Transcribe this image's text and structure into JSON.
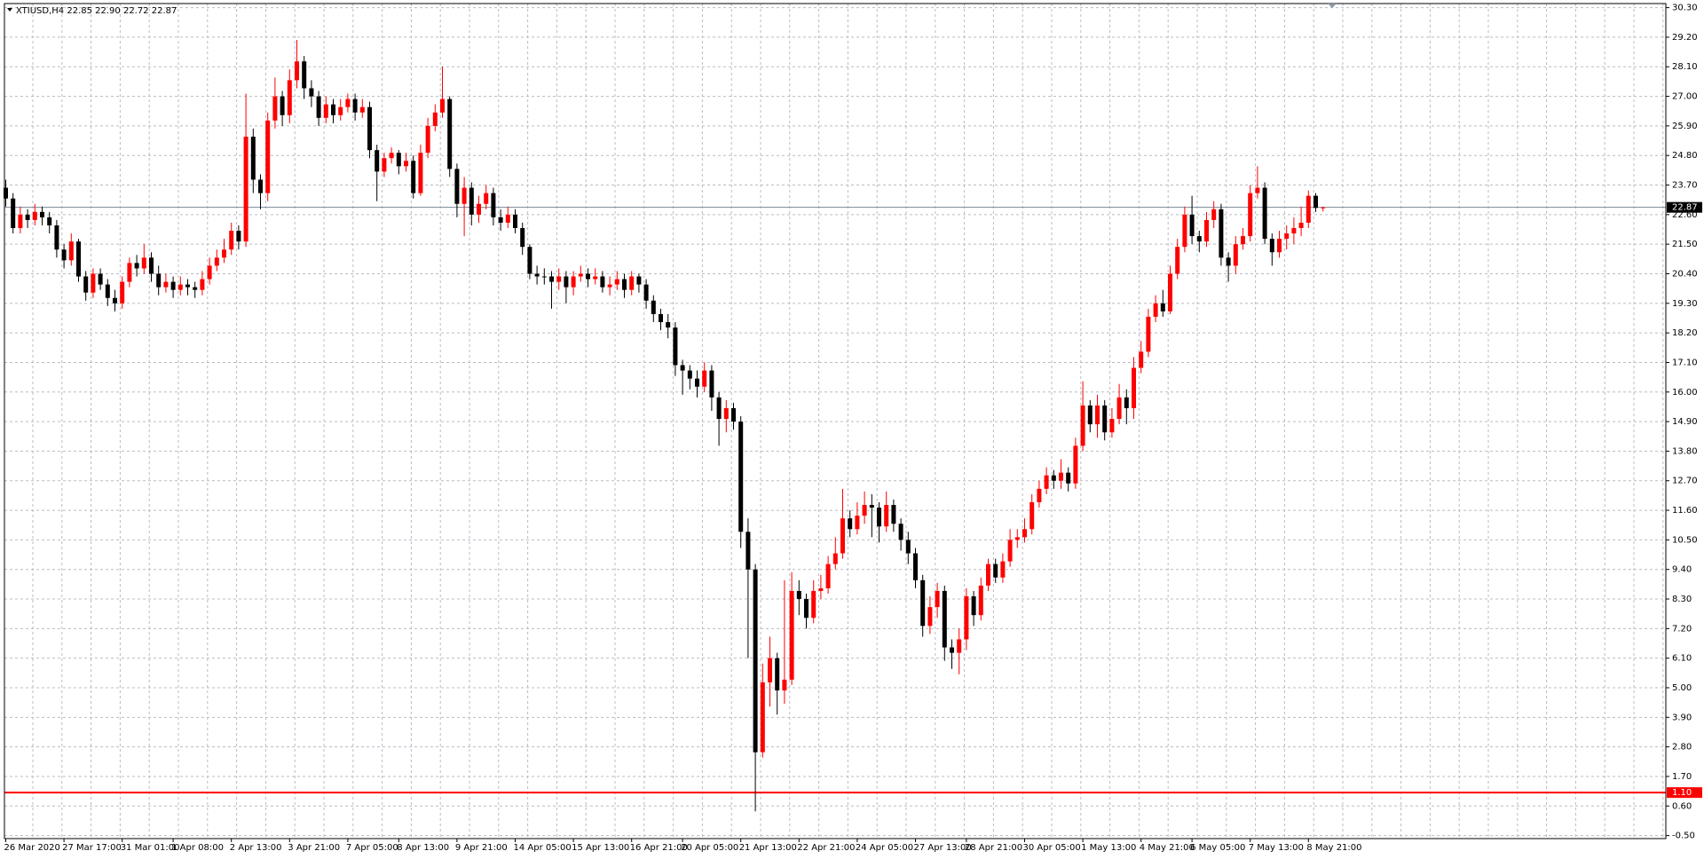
{
  "chart_data": {
    "type": "candlestick",
    "header": "XTIUSD,H4  22.85 22.90 22.72 22.87",
    "up_color": "#ff0000",
    "down_color": "#000000",
    "grid": true,
    "grid_color": "#b8bcc4",
    "ylim": [
      -0.5,
      30.3
    ],
    "yticks": [
      {
        "value": 30.3,
        "label": "30.30"
      },
      {
        "value": 29.2,
        "label": "29.20"
      },
      {
        "value": 28.1,
        "label": "28.10"
      },
      {
        "value": 27.0,
        "label": "27.00"
      },
      {
        "value": 25.9,
        "label": "25.90"
      },
      {
        "value": 24.8,
        "label": "24.80"
      },
      {
        "value": 23.7,
        "label": "23.70"
      },
      {
        "value": 22.6,
        "label": "22.60"
      },
      {
        "value": 21.5,
        "label": "21.50"
      },
      {
        "value": 20.4,
        "label": "20.40"
      },
      {
        "value": 19.3,
        "label": "19.30"
      },
      {
        "value": 18.2,
        "label": "18.20"
      },
      {
        "value": 17.1,
        "label": "17.10"
      },
      {
        "value": 16.0,
        "label": "16.00"
      },
      {
        "value": 14.9,
        "label": "14.90"
      },
      {
        "value": 13.8,
        "label": "13.80"
      },
      {
        "value": 12.7,
        "label": "12.70"
      },
      {
        "value": 11.6,
        "label": "11.60"
      },
      {
        "value": 10.5,
        "label": "10.50"
      },
      {
        "value": 9.4,
        "label": "9.40"
      },
      {
        "value": 8.3,
        "label": "8.30"
      },
      {
        "value": 7.2,
        "label": "7.20"
      },
      {
        "value": 6.1,
        "label": "6.10"
      },
      {
        "value": 5.0,
        "label": "5.00"
      },
      {
        "value": 3.9,
        "label": "3.90"
      },
      {
        "value": 2.8,
        "label": "2.80"
      },
      {
        "value": 1.7,
        "label": "1.70"
      },
      {
        "value": 0.6,
        "label": "0.60"
      },
      {
        "value": -0.5,
        "label": "-0.50"
      }
    ],
    "bid_line": 22.87,
    "bid_color": "#7a8a9a",
    "level_line": {
      "value": 1.1,
      "label": "1.10",
      "color": "#ff0000"
    },
    "categories": [
      "26 Mar 2020",
      null,
      null,
      null,
      null,
      null,
      null,
      null,
      "27 Mar 17:00",
      null,
      null,
      null,
      null,
      null,
      null,
      null,
      "31 Mar 01:00",
      null,
      null,
      null,
      null,
      null,
      null,
      "1 Apr 08:00",
      null,
      null,
      null,
      null,
      null,
      null,
      null,
      "2 Apr 13:00",
      null,
      null,
      null,
      null,
      null,
      null,
      null,
      "3 Apr 21:00",
      null,
      null,
      null,
      null,
      null,
      null,
      null,
      "7 Apr 05:00",
      null,
      null,
      null,
      null,
      null,
      null,
      "8 Apr 13:00",
      null,
      null,
      null,
      null,
      null,
      null,
      null,
      "9 Apr 21:00",
      null,
      null,
      null,
      null,
      null,
      null,
      null,
      "14 Apr 05:00",
      null,
      null,
      null,
      null,
      null,
      null,
      null,
      "15 Apr 13:00",
      null,
      null,
      null,
      null,
      null,
      null,
      null,
      "16 Apr 21:00",
      null,
      null,
      null,
      null,
      null,
      null,
      "20 Apr 05:00",
      null,
      null,
      null,
      null,
      null,
      null,
      null,
      "21 Apr 13:00",
      null,
      null,
      null,
      null,
      null,
      null,
      null,
      "22 Apr 21:00",
      null,
      null,
      null,
      null,
      null,
      null,
      null,
      "24 Apr 05:00",
      null,
      null,
      null,
      null,
      null,
      null,
      null,
      "27 Apr 13:00",
      null,
      null,
      null,
      null,
      null,
      null,
      "28 Apr 21:00",
      null,
      null,
      null,
      null,
      null,
      null,
      null,
      "30 Apr 05:00",
      null,
      null,
      null,
      null,
      null,
      null,
      null,
      "1 May 13:00",
      null,
      null,
      null,
      null,
      null,
      null,
      null,
      "4 May 21:00",
      null,
      null,
      null,
      null,
      null,
      null,
      "6 May 05:00",
      null,
      null,
      null,
      null,
      null,
      null,
      null,
      "7 May 13:00",
      null,
      null,
      null,
      null,
      null,
      null,
      null,
      "8 May 21:00",
      null,
      null
    ],
    "open": [
      23.6,
      23.2,
      22.1,
      22.6,
      22.4,
      22.7,
      22.5,
      22.2,
      21.3,
      20.9,
      21.6,
      20.3,
      19.7,
      20.4,
      20.0,
      19.5,
      19.3,
      20.1,
      20.8,
      20.6,
      21.0,
      20.4,
      19.9,
      20.1,
      19.8,
      20.0,
      19.9,
      19.8,
      20.2,
      20.7,
      21.0,
      21.3,
      22.0,
      21.6,
      25.5,
      23.9,
      23.4,
      26.1,
      27.0,
      26.3,
      27.6,
      28.3,
      27.3,
      27.0,
      26.2,
      26.7,
      26.3,
      26.6,
      26.9,
      26.4,
      26.6,
      25.0,
      24.2,
      24.7,
      24.9,
      24.4,
      24.6,
      23.4,
      24.9,
      25.9,
      26.4,
      26.9,
      24.3,
      23.0,
      23.6,
      22.6,
      23.0,
      23.4,
      22.5,
      22.3,
      22.6,
      22.1,
      21.4,
      20.4,
      20.3,
      20.3,
      20.1,
      20.3,
      19.9,
      20.3,
      20.4,
      20.2,
      20.3,
      19.9,
      20.0,
      20.2,
      19.8,
      20.3,
      20.0,
      19.4,
      18.9,
      18.6,
      18.4,
      17.0,
      16.8,
      16.5,
      16.2,
      16.8,
      15.8,
      15.0,
      15.4,
      14.9,
      10.8,
      9.4,
      2.6,
      5.2,
      6.1,
      4.9,
      5.3,
      8.6,
      8.3,
      7.6,
      8.6,
      8.7,
      9.6,
      10.0,
      11.3,
      10.9,
      11.4,
      11.8,
      11.7,
      11.0,
      11.8,
      11.1,
      10.5,
      10.0,
      9.0,
      7.3,
      8.0,
      8.6,
      6.5,
      6.3,
      6.8,
      8.4,
      7.7,
      8.8,
      9.6,
      9.1,
      9.7,
      10.5,
      10.6,
      10.9,
      11.9,
      12.4,
      12.9,
      12.7,
      13.0,
      12.6,
      14.0,
      15.5,
      14.8,
      15.5,
      14.5,
      15.0,
      15.8,
      15.4,
      16.9,
      17.5,
      18.8,
      19.3,
      19.0,
      20.4,
      21.4,
      22.6,
      21.8,
      21.6,
      22.4,
      22.8,
      21.0,
      20.7,
      21.5,
      21.8,
      23.4,
      23.6,
      21.7,
      21.2,
      21.7,
      21.9,
      22.1,
      22.3,
      23.3,
      22.85
    ],
    "high": [
      23.9,
      23.4,
      22.9,
      22.8,
      23.0,
      22.9,
      22.7,
      22.4,
      21.5,
      21.9,
      21.7,
      20.5,
      20.6,
      20.6,
      20.2,
      19.8,
      20.3,
      21.0,
      21.1,
      21.5,
      21.2,
      20.7,
      20.4,
      20.3,
      20.3,
      20.2,
      20.1,
      20.5,
      21.0,
      21.3,
      21.7,
      22.3,
      22.2,
      27.1,
      25.8,
      24.1,
      26.4,
      27.7,
      27.2,
      28.0,
      29.1,
      28.5,
      27.6,
      27.2,
      27.0,
      26.9,
      26.9,
      27.1,
      27.1,
      26.9,
      26.8,
      25.2,
      24.9,
      25.1,
      25.0,
      24.9,
      24.8,
      25.2,
      26.2,
      26.7,
      28.1,
      27.0,
      24.5,
      24.0,
      23.8,
      23.3,
      23.7,
      23.6,
      22.8,
      22.9,
      22.8,
      22.3,
      21.5,
      20.7,
      20.6,
      20.5,
      20.6,
      20.5,
      20.5,
      20.7,
      20.6,
      20.6,
      20.5,
      20.3,
      20.5,
      20.4,
      20.5,
      20.4,
      20.2,
      19.6,
      19.1,
      18.9,
      18.6,
      17.2,
      17.0,
      16.8,
      17.1,
      17.0,
      16.0,
      15.7,
      15.6,
      15.1,
      11.3,
      9.6,
      5.9,
      6.9,
      6.3,
      9.0,
      9.3,
      9.0,
      8.5,
      9.0,
      9.2,
      9.9,
      10.6,
      12.4,
      11.6,
      11.9,
      12.3,
      12.2,
      11.9,
      12.3,
      12.0,
      11.3,
      10.8,
      10.2,
      9.2,
      8.4,
      8.9,
      8.8,
      6.8,
      7.2,
      8.7,
      8.6,
      9.1,
      9.8,
      9.8,
      10.0,
      10.9,
      10.9,
      11.3,
      12.2,
      12.7,
      13.2,
      13.1,
      13.5,
      13.2,
      14.3,
      16.4,
      15.7,
      15.9,
      15.7,
      15.4,
      16.3,
      16.1,
      17.3,
      17.9,
      19.1,
      19.6,
      19.8,
      20.7,
      21.7,
      22.9,
      23.3,
      22.0,
      22.7,
      23.1,
      23.0,
      21.2,
      21.8,
      22.1,
      23.7,
      24.4,
      23.8,
      21.9,
      22.0,
      22.2,
      22.5,
      22.9,
      23.5,
      23.4,
      22.9
    ],
    "low": [
      22.9,
      21.9,
      21.9,
      22.1,
      22.2,
      22.2,
      21.9,
      21.0,
      20.6,
      20.7,
      20.1,
      19.4,
      19.5,
      19.8,
      19.2,
      19.0,
      19.1,
      19.9,
      20.3,
      20.4,
      20.1,
      19.6,
      19.7,
      19.5,
      19.6,
      19.6,
      19.5,
      19.6,
      20.0,
      20.5,
      20.8,
      21.1,
      21.3,
      21.4,
      23.4,
      22.8,
      23.1,
      25.8,
      25.9,
      26.0,
      27.3,
      26.9,
      26.6,
      25.9,
      26.0,
      26.0,
      26.1,
      26.4,
      26.1,
      26.2,
      24.7,
      23.1,
      24.0,
      24.5,
      24.1,
      24.2,
      23.2,
      23.3,
      24.7,
      25.7,
      26.2,
      24.0,
      22.5,
      21.8,
      22.2,
      22.3,
      22.8,
      22.2,
      22.0,
      22.1,
      21.9,
      21.1,
      20.2,
      20.0,
      20.0,
      19.1,
      19.8,
      19.3,
      19.6,
      20.1,
      19.9,
      20.0,
      19.7,
      19.6,
      19.8,
      19.5,
      19.6,
      19.7,
      19.1,
      18.6,
      18.3,
      18.0,
      16.6,
      15.9,
      16.1,
      15.8,
      16.0,
      15.3,
      14.0,
      14.5,
      14.6,
      10.2,
      6.1,
      0.4,
      2.4,
      4.3,
      4.0,
      4.4,
      5.1,
      7.7,
      7.2,
      7.4,
      8.3,
      8.5,
      9.4,
      9.8,
      10.6,
      10.7,
      11.1,
      10.6,
      10.4,
      10.8,
      10.8,
      10.1,
      9.6,
      8.7,
      6.9,
      7.0,
      7.6,
      6.0,
      5.7,
      5.5,
      6.4,
      7.3,
      7.5,
      8.6,
      8.9,
      8.9,
      9.5,
      10.2,
      10.4,
      10.7,
      11.7,
      12.2,
      12.4,
      12.4,
      12.3,
      12.4,
      13.8,
      14.5,
      14.3,
      14.2,
      14.3,
      14.8,
      14.8,
      15.0,
      16.7,
      17.3,
      18.6,
      18.8,
      18.9,
      20.2,
      21.2,
      21.5,
      21.2,
      21.4,
      22.1,
      20.7,
      20.1,
      20.4,
      21.3,
      21.6,
      23.2,
      21.5,
      20.7,
      21.0,
      21.3,
      21.5,
      21.8,
      22.1,
      22.7,
      22.72
    ],
    "close": [
      23.2,
      22.1,
      22.6,
      22.4,
      22.7,
      22.5,
      22.2,
      21.3,
      20.9,
      21.6,
      20.3,
      19.7,
      20.4,
      20.0,
      19.5,
      19.3,
      20.1,
      20.8,
      20.6,
      21.0,
      20.4,
      19.9,
      20.1,
      19.8,
      20.0,
      19.9,
      19.8,
      20.2,
      20.7,
      21.0,
      21.3,
      22.0,
      21.6,
      25.5,
      23.9,
      23.4,
      26.1,
      27.0,
      26.3,
      27.6,
      28.3,
      27.3,
      27.0,
      26.2,
      26.7,
      26.3,
      26.6,
      26.9,
      26.4,
      26.6,
      25.0,
      24.2,
      24.7,
      24.9,
      24.4,
      24.6,
      23.4,
      24.9,
      25.9,
      26.4,
      26.9,
      24.3,
      23.0,
      23.6,
      22.6,
      23.0,
      23.4,
      22.5,
      22.3,
      22.6,
      22.1,
      21.4,
      20.4,
      20.3,
      20.3,
      20.1,
      20.3,
      19.9,
      20.3,
      20.4,
      20.2,
      20.3,
      19.9,
      20.0,
      20.2,
      19.8,
      20.3,
      20.0,
      19.4,
      18.9,
      18.6,
      18.4,
      17.0,
      16.8,
      16.5,
      16.2,
      16.8,
      15.8,
      15.0,
      15.4,
      14.9,
      10.8,
      9.4,
      2.6,
      5.2,
      6.1,
      4.9,
      5.3,
      8.6,
      8.3,
      7.6,
      8.6,
      8.7,
      9.6,
      10.0,
      11.3,
      10.9,
      11.4,
      11.8,
      11.7,
      11.0,
      11.8,
      11.1,
      10.5,
      10.0,
      9.0,
      7.3,
      8.0,
      8.6,
      6.5,
      6.3,
      6.8,
      8.4,
      7.7,
      8.8,
      9.6,
      9.1,
      9.7,
      10.5,
      10.6,
      10.9,
      11.9,
      12.4,
      12.9,
      12.7,
      13.0,
      12.6,
      14.0,
      15.5,
      14.8,
      15.5,
      14.5,
      15.0,
      15.8,
      15.4,
      16.9,
      17.5,
      18.8,
      19.3,
      19.0,
      20.4,
      21.4,
      22.6,
      21.8,
      21.6,
      22.4,
      22.8,
      21.0,
      20.7,
      21.5,
      21.8,
      23.4,
      23.6,
      21.7,
      21.2,
      21.7,
      21.9,
      22.1,
      22.3,
      23.3,
      22.85,
      22.87
    ]
  }
}
